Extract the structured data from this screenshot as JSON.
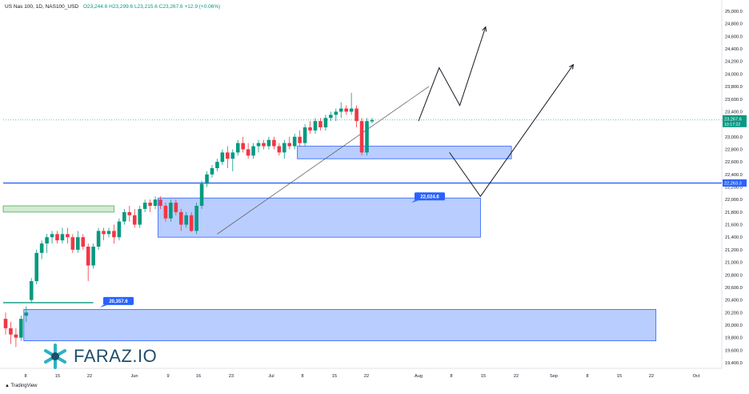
{
  "header": {
    "symbol": "US Nas 100, 1D, NAS100_USD",
    "open": "O23,244.6",
    "high": "H23,299.6",
    "low": "L23,215.6",
    "close": "C23,267.6",
    "change": "+12.9 (+0.06%)"
  },
  "watermark": {
    "brand": "FARAZ.IO"
  },
  "footer": {
    "brand": "TradingView"
  },
  "colors": {
    "up": "#089981",
    "down": "#f23645",
    "zone": "#2962ff",
    "supply": "#4caf50"
  },
  "chart_data": {
    "type": "candlestick",
    "ylim": [
      19300,
      25100
    ],
    "y_ticks": [
      "25,000.0",
      "24,800.0",
      "24,600.0",
      "24,400.0",
      "24,200.0",
      "24,000.0",
      "23,800.0",
      "23,600.0",
      "23,400.0",
      "23,200.0",
      "23,000.0",
      "22,800.0",
      "22,600.0",
      "22,400.0",
      "22,200.0",
      "22,000.0",
      "21,800.0",
      "21,600.0",
      "21,400.0",
      "21,200.0",
      "21,000.0",
      "20,800.0",
      "20,600.0",
      "20,400.0",
      "20,200.0",
      "20,000.0",
      "19,800.0",
      "19,600.0",
      "19,400.0"
    ],
    "x_ticks": [
      "8",
      "15",
      "22",
      "Jun",
      "9",
      "16",
      "23",
      "Jul",
      "8",
      "15",
      "22",
      "Aug",
      "8",
      "15",
      "22",
      "Sep",
      "8",
      "15",
      "22",
      "Oct"
    ],
    "price_labels": {
      "last": {
        "value": 23267.6,
        "text": "23,267.6",
        "sub": "10:17:22"
      },
      "level": {
        "value": 22263.3,
        "text": "22,263.3"
      }
    },
    "annotations": [
      {
        "text": "22,024.6",
        "value": 22024.6
      },
      {
        "text": "20,357.6",
        "value": 20357.6
      }
    ],
    "candles": [
      {
        "o": 20100,
        "h": 20200,
        "l": 19850,
        "c": 19950
      },
      {
        "o": 19950,
        "h": 20050,
        "l": 19700,
        "c": 19850
      },
      {
        "o": 19850,
        "h": 19950,
        "l": 19650,
        "c": 19800
      },
      {
        "o": 19800,
        "h": 20150,
        "l": 19750,
        "c": 20100
      },
      {
        "o": 20150,
        "h": 20300,
        "l": 20050,
        "c": 20200
      },
      {
        "o": 20400,
        "h": 20750,
        "l": 20350,
        "c": 20700
      },
      {
        "o": 20700,
        "h": 21200,
        "l": 20650,
        "c": 21150
      },
      {
        "o": 21150,
        "h": 21350,
        "l": 21050,
        "c": 21300
      },
      {
        "o": 21300,
        "h": 21450,
        "l": 21150,
        "c": 21400
      },
      {
        "o": 21400,
        "h": 21500,
        "l": 21300,
        "c": 21450
      },
      {
        "o": 21450,
        "h": 21500,
        "l": 21300,
        "c": 21350
      },
      {
        "o": 21350,
        "h": 21550,
        "l": 21300,
        "c": 21450
      },
      {
        "o": 21450,
        "h": 21550,
        "l": 21300,
        "c": 21400
      },
      {
        "o": 21400,
        "h": 21450,
        "l": 21150,
        "c": 21200
      },
      {
        "o": 21200,
        "h": 21500,
        "l": 21150,
        "c": 21400
      },
      {
        "o": 21400,
        "h": 21450,
        "l": 21200,
        "c": 21250
      },
      {
        "o": 21250,
        "h": 21300,
        "l": 20700,
        "c": 20950
      },
      {
        "o": 20950,
        "h": 21300,
        "l": 20900,
        "c": 21250
      },
      {
        "o": 21250,
        "h": 21550,
        "l": 21200,
        "c": 21500
      },
      {
        "o": 21500,
        "h": 21550,
        "l": 21350,
        "c": 21450
      },
      {
        "o": 21450,
        "h": 21550,
        "l": 21400,
        "c": 21500
      },
      {
        "o": 21500,
        "h": 21600,
        "l": 21300,
        "c": 21400
      },
      {
        "o": 21400,
        "h": 21700,
        "l": 21350,
        "c": 21650
      },
      {
        "o": 21650,
        "h": 21850,
        "l": 21600,
        "c": 21800
      },
      {
        "o": 21800,
        "h": 21900,
        "l": 21650,
        "c": 21750
      },
      {
        "o": 21750,
        "h": 21850,
        "l": 21550,
        "c": 21600
      },
      {
        "o": 21600,
        "h": 21900,
        "l": 21550,
        "c": 21850
      },
      {
        "o": 21850,
        "h": 22000,
        "l": 21800,
        "c": 21950
      },
      {
        "o": 21950,
        "h": 22000,
        "l": 21800,
        "c": 21900
      },
      {
        "o": 21900,
        "h": 22050,
        "l": 21850,
        "c": 22000
      },
      {
        "o": 22000,
        "h": 22050,
        "l": 21850,
        "c": 21900
      },
      {
        "o": 21900,
        "h": 21950,
        "l": 21650,
        "c": 21700
      },
      {
        "o": 21700,
        "h": 22000,
        "l": 21650,
        "c": 21950
      },
      {
        "o": 21950,
        "h": 22000,
        "l": 21750,
        "c": 21800
      },
      {
        "o": 21800,
        "h": 21850,
        "l": 21500,
        "c": 21600
      },
      {
        "o": 21600,
        "h": 21800,
        "l": 21550,
        "c": 21750
      },
      {
        "o": 21750,
        "h": 21800,
        "l": 21480,
        "c": 21500
      },
      {
        "o": 21500,
        "h": 21950,
        "l": 21450,
        "c": 21900
      },
      {
        "o": 21900,
        "h": 22300,
        "l": 21850,
        "c": 22250
      },
      {
        "o": 22250,
        "h": 22450,
        "l": 22200,
        "c": 22400
      },
      {
        "o": 22400,
        "h": 22550,
        "l": 22350,
        "c": 22500
      },
      {
        "o": 22500,
        "h": 22650,
        "l": 22450,
        "c": 22600
      },
      {
        "o": 22600,
        "h": 22800,
        "l": 22550,
        "c": 22750
      },
      {
        "o": 22750,
        "h": 22850,
        "l": 22500,
        "c": 22650
      },
      {
        "o": 22650,
        "h": 22800,
        "l": 22450,
        "c": 22750
      },
      {
        "o": 22750,
        "h": 22950,
        "l": 22700,
        "c": 22900
      },
      {
        "o": 22900,
        "h": 23000,
        "l": 22750,
        "c": 22800
      },
      {
        "o": 22800,
        "h": 22900,
        "l": 22650,
        "c": 22700
      },
      {
        "o": 22700,
        "h": 22900,
        "l": 22650,
        "c": 22850
      },
      {
        "o": 22850,
        "h": 22950,
        "l": 22750,
        "c": 22900
      },
      {
        "o": 22900,
        "h": 22950,
        "l": 22800,
        "c": 22850
      },
      {
        "o": 22850,
        "h": 23000,
        "l": 22800,
        "c": 22950
      },
      {
        "o": 22950,
        "h": 23000,
        "l": 22800,
        "c": 22850
      },
      {
        "o": 22850,
        "h": 22900,
        "l": 22700,
        "c": 22750
      },
      {
        "o": 22750,
        "h": 22950,
        "l": 22650,
        "c": 22900
      },
      {
        "o": 22900,
        "h": 23000,
        "l": 22800,
        "c": 22850
      },
      {
        "o": 22850,
        "h": 23050,
        "l": 22800,
        "c": 23000
      },
      {
        "o": 23000,
        "h": 23100,
        "l": 22850,
        "c": 22900
      },
      {
        "o": 22900,
        "h": 23200,
        "l": 22850,
        "c": 23150
      },
      {
        "o": 23150,
        "h": 23250,
        "l": 23050,
        "c": 23100
      },
      {
        "o": 23100,
        "h": 23300,
        "l": 23050,
        "c": 23250
      },
      {
        "o": 23250,
        "h": 23300,
        "l": 23100,
        "c": 23150
      },
      {
        "o": 23150,
        "h": 23350,
        "l": 23100,
        "c": 23300
      },
      {
        "o": 23300,
        "h": 23400,
        "l": 23250,
        "c": 23350
      },
      {
        "o": 23350,
        "h": 23450,
        "l": 23250,
        "c": 23400
      },
      {
        "o": 23400,
        "h": 23550,
        "l": 23300,
        "c": 23450
      },
      {
        "o": 23450,
        "h": 23500,
        "l": 23350,
        "c": 23400
      },
      {
        "o": 23400,
        "h": 23700,
        "l": 23350,
        "c": 23450
      },
      {
        "o": 23450,
        "h": 23500,
        "l": 23150,
        "c": 23250
      },
      {
        "o": 23250,
        "h": 23300,
        "l": 22700,
        "c": 22750
      },
      {
        "o": 22750,
        "h": 23300,
        "l": 22700,
        "c": 23250
      },
      {
        "o": 23244.6,
        "h": 23299.6,
        "l": 23215.6,
        "c": 23267.6
      }
    ],
    "zones": [
      {
        "kind": "demand",
        "from_candle": 4,
        "to_candle": 126,
        "top": 20250,
        "bottom": 19750
      },
      {
        "kind": "demand",
        "from_candle": 30,
        "to_candle": 92,
        "top": 22024.6,
        "bottom": 21400
      },
      {
        "kind": "demand",
        "from_candle": 57,
        "to_candle": 98,
        "top": 22850,
        "bottom": 22650
      },
      {
        "kind": "supply",
        "from_candle": 0,
        "to_candle": 21,
        "top": 21900,
        "bottom": 21800
      }
    ],
    "horizontal_lines": [
      {
        "value": 22263.3,
        "color": "#2962ff"
      },
      {
        "value": 20357.6,
        "from_candle": 0,
        "to_candle": 17,
        "color": "#089981"
      },
      {
        "value": 23267.6,
        "color": "#089981",
        "dotted": true
      }
    ],
    "trendline": {
      "from": [
        41,
        21450
      ],
      "to": [
        82,
        23800
      ]
    },
    "projections": [
      {
        "points": [
          [
            80,
            23250
          ],
          [
            84,
            24100
          ],
          [
            88,
            23500
          ],
          [
            93,
            24750
          ]
        ]
      },
      {
        "points": [
          [
            86,
            22750
          ],
          [
            92,
            22050
          ],
          [
            110,
            24150
          ]
        ]
      }
    ]
  }
}
